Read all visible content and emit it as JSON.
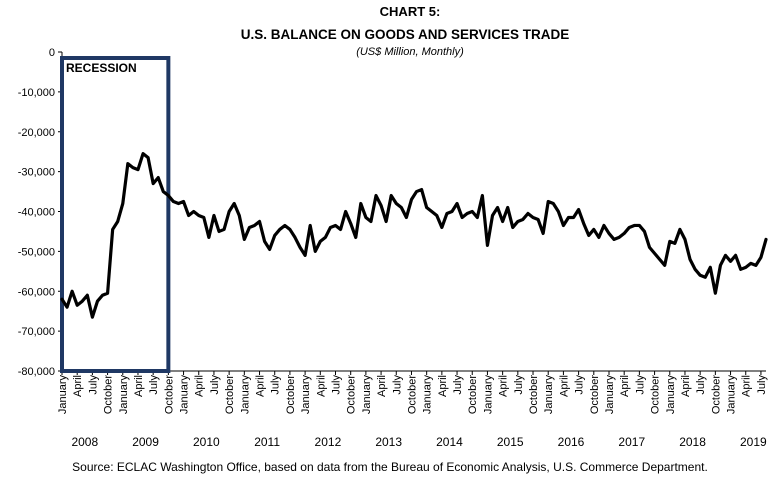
{
  "header": {
    "chart_number": "CHART 5:",
    "title": "U.S. BALANCE ON GOODS AND SERVICES TRADE",
    "subtitle": "(US$ Million, Monthly)"
  },
  "source": "Source:  ECLAC Washington Office, based on data from the Bureau of Economic Analysis, U.S. Commerce Department.",
  "chart_data": {
    "type": "line",
    "title": "U.S. BALANCE ON GOODS AND SERVICES TRADE",
    "subtitle": "(US$ Million, Monthly)",
    "ylim": [
      -80000,
      0
    ],
    "yticks": [
      "0",
      "-10,000",
      "-20,000",
      "-30,000",
      "-40,000",
      "-50,000",
      "-60,000",
      "-70,000",
      "-80,000"
    ],
    "month_tick_labels": [
      "January",
      "April",
      "July",
      "October"
    ],
    "years": [
      "2008",
      "2009",
      "2010",
      "2011",
      "2012",
      "2013",
      "2014",
      "2015",
      "2016",
      "2017",
      "2018",
      "2019"
    ],
    "x_start": "2008-01",
    "x_end": "2019-10",
    "annotation": {
      "label": "RECESSION",
      "start": "2008-01",
      "end": "2009-10",
      "color": "#1F3864"
    },
    "line_color": "#000000",
    "grid": false,
    "series": [
      {
        "name": "",
        "values": [
          -62000,
          -64000,
          -60000,
          -63500,
          -62500,
          -61000,
          -66500,
          -62500,
          -61000,
          -60500,
          -44500,
          -42500,
          -38000,
          -28000,
          -29000,
          -29500,
          -25500,
          -26500,
          -33000,
          -31500,
          -35000,
          -36000,
          -37500,
          -38000,
          -37500,
          -41000,
          -40000,
          -41000,
          -41500,
          -46500,
          -41000,
          -45000,
          -44500,
          -40000,
          -38000,
          -41000,
          -47000,
          -44000,
          -43500,
          -42500,
          -47500,
          -49500,
          -46000,
          -44500,
          -43500,
          -44500,
          -46500,
          -49000,
          -51000,
          -43500,
          -50000,
          -47500,
          -46500,
          -44000,
          -43500,
          -44500,
          -40000,
          -43000,
          -46500,
          -38000,
          -41500,
          -42500,
          -36000,
          -38500,
          -42500,
          -36000,
          -38000,
          -39000,
          -41500,
          -37000,
          -35000,
          -34500,
          -39000,
          -40000,
          -41000,
          -44000,
          -40500,
          -40000,
          -38000,
          -41500,
          -40500,
          -40000,
          -41500,
          -36000,
          -48500,
          -41000,
          -39000,
          -42500,
          -39000,
          -44000,
          -42500,
          -42000,
          -40500,
          -41500,
          -42000,
          -45500,
          -37500,
          -38000,
          -40000,
          -43500,
          -41500,
          -41500,
          -39500,
          -43000,
          -46000,
          -44500,
          -46500,
          -43500,
          -45500,
          -47000,
          -46500,
          -45500,
          -44000,
          -43500,
          -43500,
          -45000,
          -49000,
          -50500,
          -52000,
          -53500,
          -47500,
          -48000,
          -44500,
          -47000,
          -52000,
          -54500,
          -56000,
          -56500,
          -54000,
          -60500,
          -53500,
          -51000,
          -52500,
          -51000,
          -54500,
          -54000,
          -53000,
          -53500,
          -51500,
          -47000
        ]
      }
    ]
  }
}
